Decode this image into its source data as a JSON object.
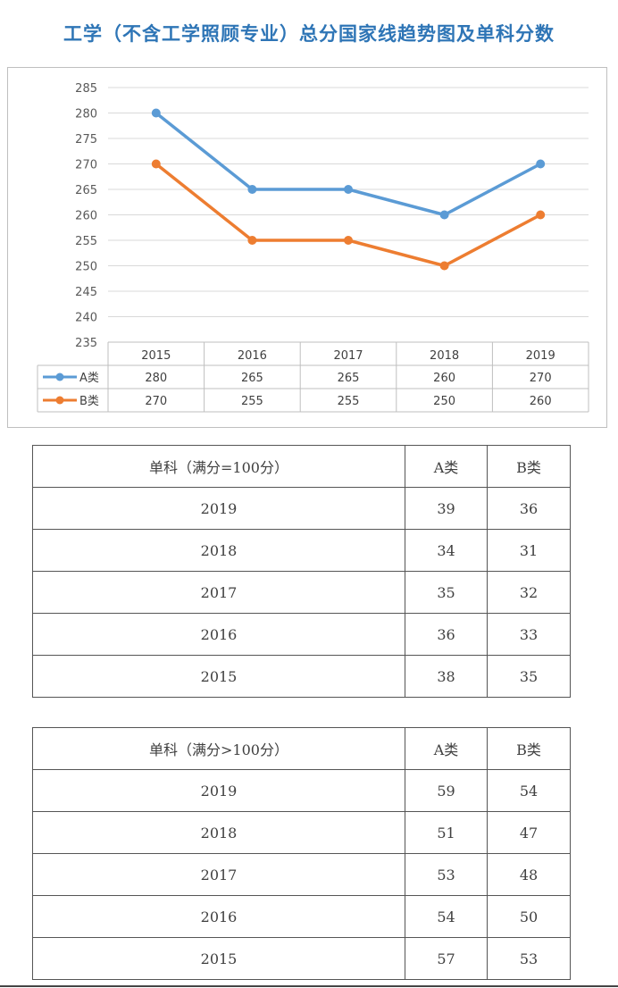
{
  "page": {
    "title": "工学（不含工学照顾专业）总分国家线趋势图及单科分数"
  },
  "chart_data": {
    "type": "line",
    "categories": [
      "2015",
      "2016",
      "2017",
      "2018",
      "2019"
    ],
    "series": [
      {
        "name": "A类",
        "values": [
          280,
          265,
          265,
          260,
          270
        ],
        "color": "#5b9bd5"
      },
      {
        "name": "B类",
        "values": [
          270,
          255,
          255,
          250,
          260
        ],
        "color": "#ed7d31"
      }
    ],
    "ylim": [
      235,
      285
    ],
    "yticks": [
      235,
      240,
      245,
      250,
      255,
      260,
      265,
      270,
      275,
      280,
      285
    ],
    "grid": true,
    "legend": "data-table-left",
    "title": "",
    "xlabel": "",
    "ylabel": ""
  },
  "tables": [
    {
      "header": [
        "单科（满分=100分）",
        "A类",
        "B类"
      ],
      "rows": [
        [
          "2019",
          "39",
          "36"
        ],
        [
          "2018",
          "34",
          "31"
        ],
        [
          "2017",
          "35",
          "32"
        ],
        [
          "2016",
          "36",
          "33"
        ],
        [
          "2015",
          "38",
          "35"
        ]
      ]
    },
    {
      "header": [
        "单科（满分>100分）",
        "A类",
        "B类"
      ],
      "rows": [
        [
          "2019",
          "59",
          "54"
        ],
        [
          "2018",
          "51",
          "47"
        ],
        [
          "2017",
          "53",
          "48"
        ],
        [
          "2016",
          "54",
          "50"
        ],
        [
          "2015",
          "57",
          "53"
        ]
      ]
    }
  ]
}
